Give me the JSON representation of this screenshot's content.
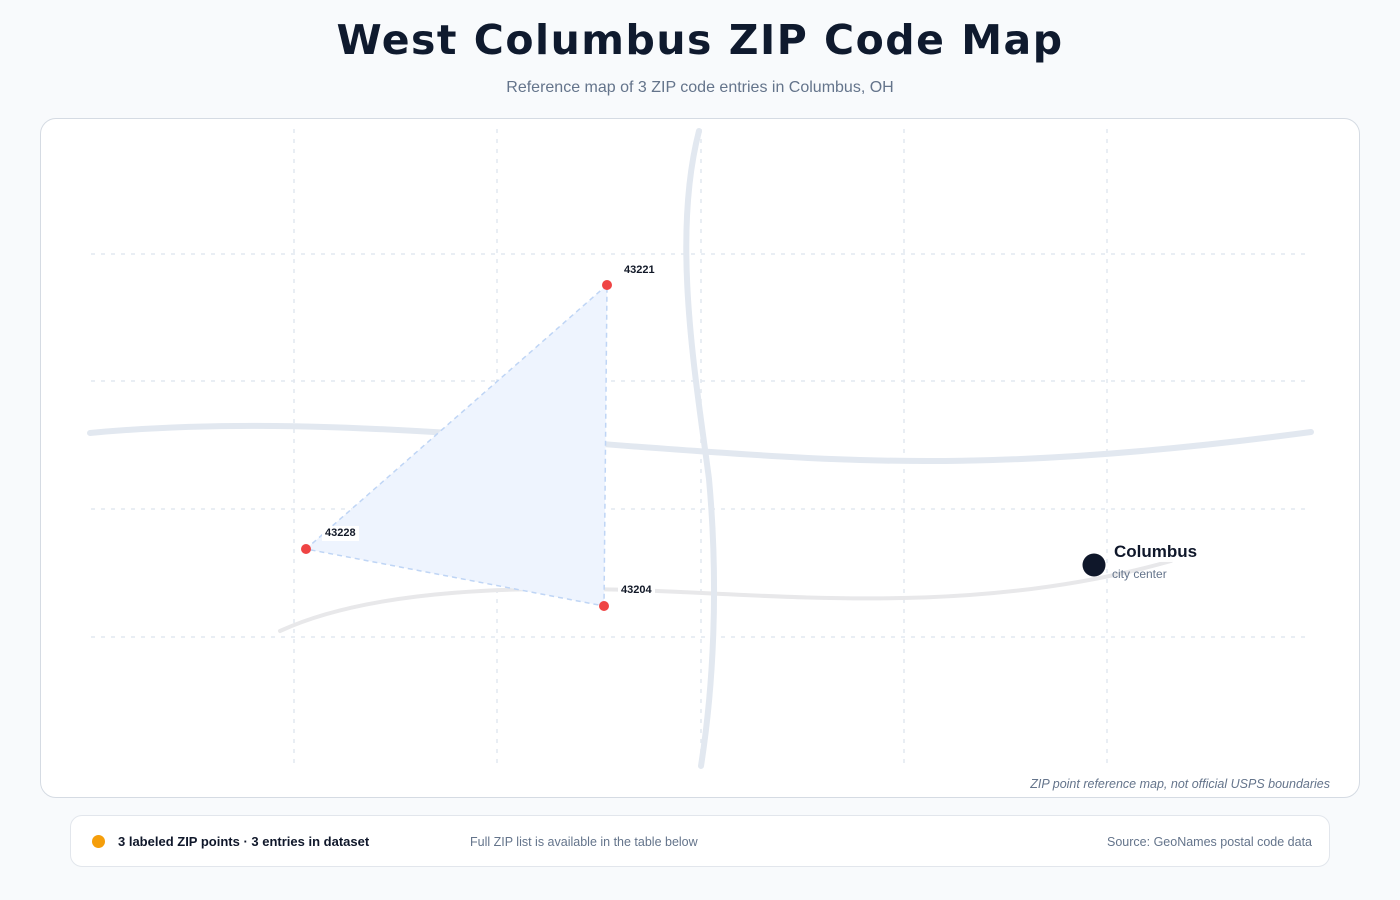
{
  "header": {
    "title": "West Columbus ZIP Code Map",
    "subtitle": "Reference map of 3 ZIP code entries in Columbus, OH"
  },
  "map": {
    "zip_points": [
      {
        "zip": "43221"
      },
      {
        "zip": "43228"
      },
      {
        "zip": "43204"
      }
    ],
    "city": {
      "name": "Columbus",
      "sublabel": "city center"
    },
    "disclaimer": "ZIP point reference map, not official USPS boundaries"
  },
  "footer": {
    "legend_text": "3 labeled ZIP points · 3 entries in dataset",
    "note": "Full ZIP list is available in the table below",
    "source": "Source: GeoNames postal code data"
  },
  "colors": {
    "zip_point": "#ef4444",
    "legend_dot": "#f59e0b",
    "city_marker": "#0f172a",
    "coverage_fill": "#eef4fe",
    "coverage_stroke": "#bfd5f5",
    "road_major": "#e2e8f0",
    "road_minor": "#e8e8ea",
    "grid": "#e2e8f0"
  }
}
